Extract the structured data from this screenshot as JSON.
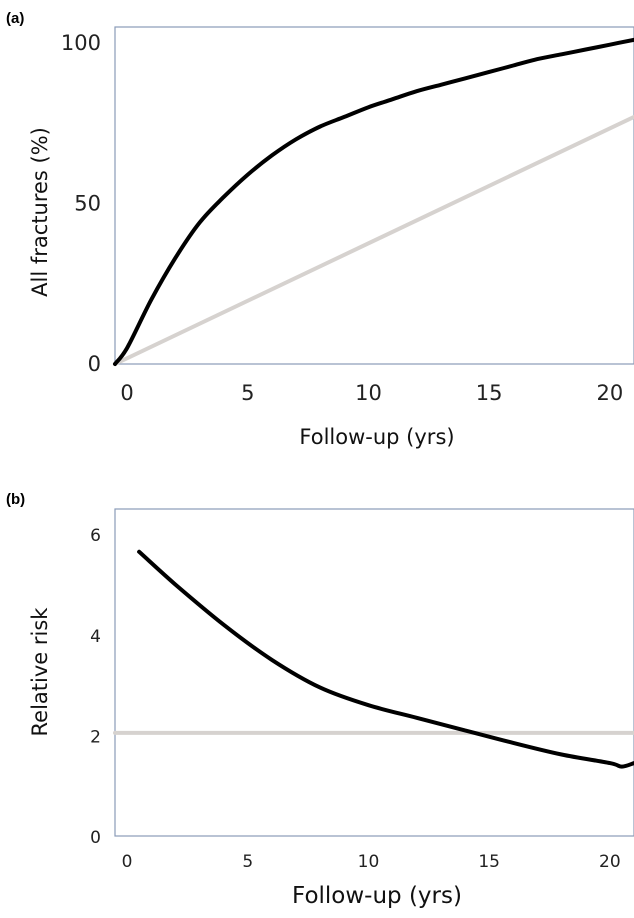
{
  "chart_data": [
    {
      "panel": "(a)",
      "type": "line",
      "xlabel": "Follow-up (yrs)",
      "ylabel": "All fractures (%)",
      "xlim": [
        -0.5,
        21
      ],
      "ylim": [
        0,
        105
      ],
      "xticks": [
        0,
        5,
        10,
        15,
        20
      ],
      "yticks": [
        0,
        50,
        100
      ],
      "grid": false,
      "series": [
        {
          "color": "#000000",
          "x": [
            -0.5,
            0,
            1,
            2,
            3,
            4,
            5,
            6,
            7,
            8,
            9,
            10,
            11,
            12,
            13,
            14,
            15,
            16,
            17,
            18,
            19,
            20,
            21
          ],
          "y": [
            0,
            5,
            20,
            33,
            44,
            52,
            59,
            65,
            70,
            74,
            77,
            80,
            82.5,
            85,
            87,
            89,
            91,
            93,
            95,
            96.5,
            98,
            99.5,
            101
          ]
        },
        {
          "color": "#d6d2cf",
          "x": [
            -0.5,
            21
          ],
          "y": [
            0,
            77
          ]
        }
      ]
    },
    {
      "panel": "(b)",
      "type": "line",
      "xlabel": "Follow-up (yrs)",
      "ylabel": "Relative risk",
      "xlim": [
        -0.5,
        21
      ],
      "ylim": [
        0,
        6.5
      ],
      "xticks": [
        0,
        5,
        10,
        15,
        20
      ],
      "yticks": [
        0,
        2,
        4,
        6
      ],
      "grid": false,
      "series": [
        {
          "color": "#000000",
          "x": [
            0.5,
            2,
            4,
            6,
            8,
            10,
            12,
            14,
            16,
            18,
            20,
            20.5,
            21
          ],
          "y": [
            5.65,
            5.0,
            4.2,
            3.5,
            2.95,
            2.6,
            2.35,
            2.1,
            1.85,
            1.62,
            1.45,
            1.38,
            1.45
          ]
        },
        {
          "color": "#d6d2cf",
          "x": [
            -0.5,
            21
          ],
          "y": [
            2.05,
            2.05
          ]
        }
      ]
    }
  ]
}
